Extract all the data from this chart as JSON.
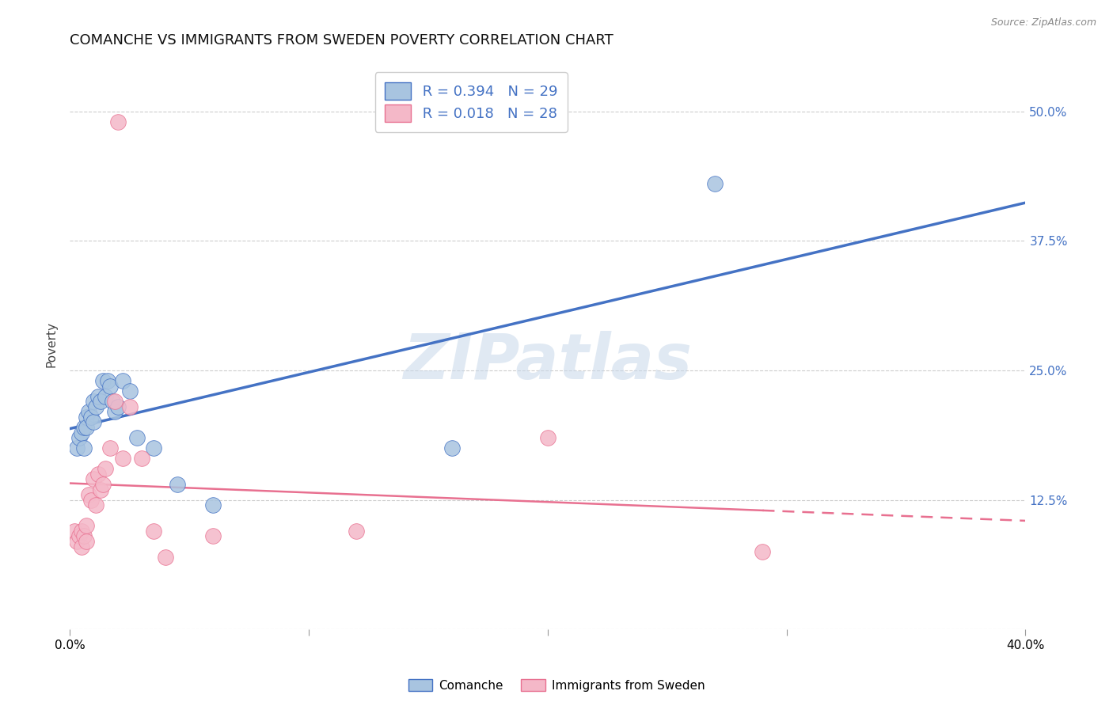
{
  "title": "COMANCHE VS IMMIGRANTS FROM SWEDEN POVERTY CORRELATION CHART",
  "source": "Source: ZipAtlas.com",
  "ylabel": "Poverty",
  "watermark": "ZIPatlas",
  "xlim": [
    0.0,
    0.4
  ],
  "ylim": [
    0.0,
    0.55
  ],
  "yticks": [
    0.0,
    0.125,
    0.25,
    0.375,
    0.5
  ],
  "ytick_labels": [
    "",
    "12.5%",
    "25.0%",
    "37.5%",
    "50.0%"
  ],
  "legend_r1": "R = 0.394",
  "legend_n1": "N = 29",
  "legend_r2": "R = 0.018",
  "legend_n2": "N = 28",
  "color_comanche": "#a8c4e0",
  "color_sweden": "#f4b8c8",
  "color_line_comanche": "#4472c4",
  "color_line_sweden": "#e87090",
  "comanche_x": [
    0.003,
    0.004,
    0.005,
    0.006,
    0.006,
    0.007,
    0.007,
    0.008,
    0.009,
    0.01,
    0.01,
    0.011,
    0.012,
    0.013,
    0.014,
    0.015,
    0.016,
    0.017,
    0.018,
    0.019,
    0.02,
    0.022,
    0.025,
    0.028,
    0.035,
    0.045,
    0.06,
    0.27,
    0.16
  ],
  "comanche_y": [
    0.175,
    0.185,
    0.19,
    0.195,
    0.175,
    0.205,
    0.195,
    0.21,
    0.205,
    0.22,
    0.2,
    0.215,
    0.225,
    0.22,
    0.24,
    0.225,
    0.24,
    0.235,
    0.22,
    0.21,
    0.215,
    0.24,
    0.23,
    0.185,
    0.175,
    0.14,
    0.12,
    0.43,
    0.175
  ],
  "sweden_x": [
    0.002,
    0.003,
    0.004,
    0.005,
    0.005,
    0.006,
    0.007,
    0.007,
    0.008,
    0.009,
    0.01,
    0.011,
    0.012,
    0.013,
    0.014,
    0.015,
    0.017,
    0.019,
    0.022,
    0.025,
    0.03,
    0.035,
    0.04,
    0.06,
    0.12,
    0.2,
    0.29,
    0.02
  ],
  "sweden_y": [
    0.095,
    0.085,
    0.09,
    0.08,
    0.095,
    0.09,
    0.085,
    0.1,
    0.13,
    0.125,
    0.145,
    0.12,
    0.15,
    0.135,
    0.14,
    0.155,
    0.175,
    0.22,
    0.165,
    0.215,
    0.165,
    0.095,
    0.07,
    0.09,
    0.095,
    0.185,
    0.075,
    0.49
  ],
  "background_color": "#ffffff",
  "grid_color": "#cccccc",
  "title_fontsize": 13,
  "axis_label_fontsize": 11,
  "tick_fontsize": 11,
  "legend_fontsize": 13
}
